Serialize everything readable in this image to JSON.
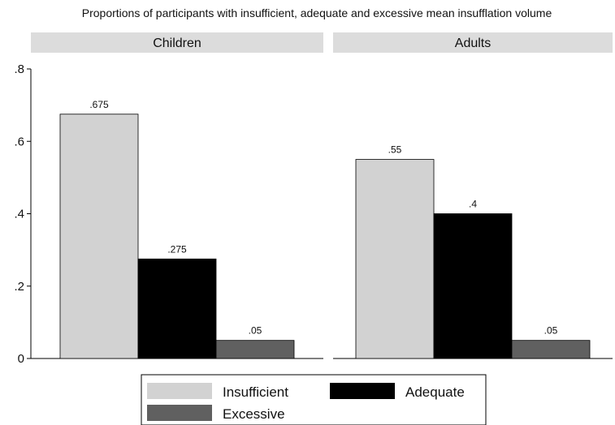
{
  "chart_data": {
    "type": "bar",
    "title": "Proportions of participants with insufficient, adequate and excessive mean insufflation volume",
    "ylim": [
      0,
      0.8
    ],
    "yticks": [
      0,
      0.2,
      0.4,
      0.6,
      0.8
    ],
    "ytick_labels": [
      "0",
      ".2",
      ".4",
      ".6",
      ".8"
    ],
    "legend_position": "bottom",
    "series": [
      {
        "name": "Insufficient",
        "color": "#d2d2d2"
      },
      {
        "name": "Adequate",
        "color": "#000000"
      },
      {
        "name": "Excessive",
        "color": "#606060"
      }
    ],
    "panels": [
      {
        "title": "Children",
        "values": [
          0.675,
          0.275,
          0.05
        ],
        "labels": [
          ".675",
          ".275",
          ".05"
        ]
      },
      {
        "title": "Adults",
        "values": [
          0.55,
          0.4,
          0.05
        ],
        "labels": [
          ".55",
          ".4",
          ".05"
        ]
      }
    ]
  }
}
